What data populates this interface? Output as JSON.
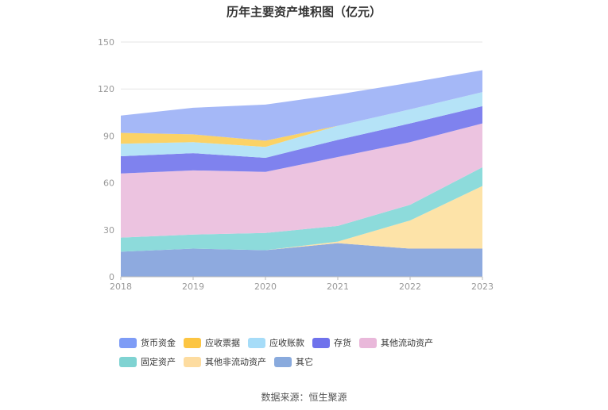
{
  "chart_data": {
    "type": "area",
    "title": "历年主要资产堆积图（亿元）",
    "stacked": true,
    "x": [
      "2018",
      "2019",
      "2020",
      "2021",
      "2022",
      "2023"
    ],
    "ylim": [
      0,
      150
    ],
    "yticks": [
      "0",
      "30",
      "60",
      "90",
      "120",
      "150"
    ],
    "grid": true,
    "legend_position": "bottom",
    "series": [
      {
        "name": "其它",
        "color": "#8eaadf",
        "values": [
          16,
          18,
          17,
          21.5,
          18,
          18
        ]
      },
      {
        "name": "其他非流动资产",
        "color": "#fde3a8",
        "values": [
          0,
          0,
          0,
          1,
          18,
          40
        ]
      },
      {
        "name": "固定资产",
        "color": "#8ddbdb",
        "values": [
          9,
          9,
          11,
          10,
          10,
          12
        ]
      },
      {
        "name": "其他流动资产",
        "color": "#ecc3e0",
        "values": [
          41,
          41,
          39,
          44,
          40,
          28
        ]
      },
      {
        "name": "存货",
        "color": "#7f82ee",
        "values": [
          11,
          11,
          9,
          11,
          12,
          11
        ]
      },
      {
        "name": "应收账款",
        "color": "#b5e3f7",
        "values": [
          8,
          7,
          7,
          9,
          9,
          9
        ]
      },
      {
        "name": "应收票据",
        "color": "#fbd266",
        "values": [
          7,
          5,
          4,
          0,
          0,
          0
        ]
      },
      {
        "name": "货币资金",
        "color": "#a5b8f7",
        "values": [
          11,
          17,
          23,
          20,
          17,
          14
        ]
      }
    ],
    "legend": [
      {
        "name": "货币资金",
        "color": "#7e9cf6"
      },
      {
        "name": "应收票据",
        "color": "#fcc542"
      },
      {
        "name": "应收账款",
        "color": "#a6dcf8"
      },
      {
        "name": "存货",
        "color": "#6f72ec"
      },
      {
        "name": "其他流动资产",
        "color": "#e9b8da"
      },
      {
        "name": "固定资产",
        "color": "#7fd3d2"
      },
      {
        "name": "其他非流动资产",
        "color": "#fddca0"
      },
      {
        "name": "其它",
        "color": "#89aadd"
      }
    ]
  },
  "source": "数据来源：恒生聚源"
}
